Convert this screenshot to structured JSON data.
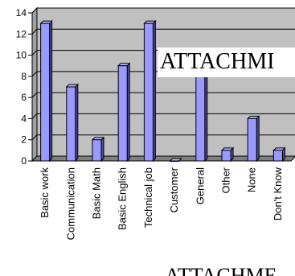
{
  "chart_data": {
    "type": "bar",
    "categories": [
      "Basic work",
      "Communication",
      "Basic Math",
      "Basic English",
      "Technical job",
      "Customer",
      "General",
      "Other",
      "None",
      "Don't Know"
    ],
    "values": [
      13,
      7,
      2,
      9,
      13,
      0,
      8,
      1,
      4,
      1
    ],
    "ylim": [
      0,
      14
    ],
    "yticks": [
      0,
      2,
      4,
      6,
      8,
      10,
      12,
      14
    ],
    "grid": true,
    "legend": "none",
    "bar_color": "#9999ff",
    "bar_side_color": "#4b4b9a",
    "bar_top_color": "#b8b8ff",
    "wall_color": "#c0c0c0"
  },
  "overlays": {
    "top_text": "ATTACHMI",
    "bottom_text": "ATTACHME"
  }
}
